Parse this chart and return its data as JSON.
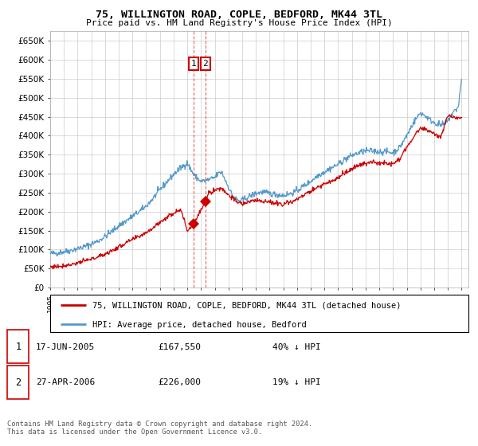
{
  "title": "75, WILLINGTON ROAD, COPLE, BEDFORD, MK44 3TL",
  "subtitle": "Price paid vs. HM Land Registry's House Price Index (HPI)",
  "ylim": [
    0,
    675000
  ],
  "yticks": [
    0,
    50000,
    100000,
    150000,
    200000,
    250000,
    300000,
    350000,
    400000,
    450000,
    500000,
    550000,
    600000,
    650000
  ],
  "xlim_start": 1995.0,
  "xlim_end": 2025.5,
  "sale1_date": 2005.46,
  "sale1_price": 167550,
  "sale2_date": 2006.32,
  "sale2_price": 226000,
  "legend_line1": "75, WILLINGTON ROAD, COPLE, BEDFORD, MK44 3TL (detached house)",
  "legend_line2": "HPI: Average price, detached house, Bedford",
  "footnote": "Contains HM Land Registry data © Crown copyright and database right 2024.\nThis data is licensed under the Open Government Licence v3.0.",
  "red_color": "#cc0000",
  "blue_color": "#5599cc",
  "background_color": "#ffffff",
  "grid_color": "#cccccc",
  "hpi_years": [
    1995,
    1995.5,
    1996,
    1996.5,
    1997,
    1997.5,
    1998,
    1998.5,
    1999,
    1999.5,
    2000,
    2000.5,
    2001,
    2001.5,
    2002,
    2002.5,
    2003,
    2003.5,
    2004,
    2004.5,
    2005,
    2005.5,
    2006,
    2006.5,
    2007,
    2007.25,
    2007.5,
    2007.75,
    2008,
    2008.25,
    2008.5,
    2008.75,
    2009,
    2009.5,
    2010,
    2010.5,
    2011,
    2011.5,
    2012,
    2012.5,
    2013,
    2013.5,
    2014,
    2014.5,
    2015,
    2015.5,
    2016,
    2016.5,
    2017,
    2017.5,
    2018,
    2018.5,
    2019,
    2019.5,
    2020,
    2020.5,
    2021,
    2021.5,
    2022,
    2022.25,
    2022.5,
    2022.75,
    2023,
    2023.25,
    2023.5,
    2023.75,
    2024,
    2024.25,
    2024.5,
    2024.75,
    2025
  ],
  "hpi_values": [
    90000,
    91000,
    95000,
    98000,
    103000,
    108000,
    115000,
    123000,
    135000,
    148000,
    163000,
    175000,
    188000,
    200000,
    215000,
    235000,
    258000,
    278000,
    298000,
    315000,
    328000,
    295000,
    280000,
    283000,
    290000,
    300000,
    305000,
    285000,
    265000,
    245000,
    235000,
    228000,
    230000,
    240000,
    248000,
    252000,
    248000,
    245000,
    243000,
    247000,
    255000,
    268000,
    280000,
    295000,
    305000,
    315000,
    325000,
    338000,
    348000,
    355000,
    360000,
    360000,
    358000,
    358000,
    355000,
    370000,
    400000,
    435000,
    460000,
    455000,
    448000,
    440000,
    435000,
    430000,
    428000,
    430000,
    440000,
    455000,
    465000,
    475000,
    548000
  ],
  "red_years": [
    1995,
    1995.5,
    1996,
    1996.5,
    1997,
    1997.5,
    1998,
    1998.5,
    1999,
    1999.5,
    2000,
    2000.5,
    2001,
    2001.5,
    2002,
    2002.5,
    2003,
    2003.5,
    2004,
    2004.5,
    2005,
    2005.46,
    2006.32,
    2006.5,
    2007,
    2007.5,
    2008,
    2008.5,
    2009,
    2009.5,
    2010,
    2010.5,
    2011,
    2011.5,
    2012,
    2012.5,
    2013,
    2013.5,
    2014,
    2014.5,
    2015,
    2015.5,
    2016,
    2016.5,
    2017,
    2017.5,
    2018,
    2018.5,
    2019,
    2019.5,
    2020,
    2020.5,
    2021,
    2021.5,
    2022,
    2022.5,
    2023,
    2023.5,
    2024,
    2024.5,
    2025
  ],
  "red_values": [
    55000,
    56000,
    58000,
    61000,
    65000,
    70000,
    75000,
    81000,
    89000,
    97000,
    107000,
    117000,
    126000,
    135000,
    146000,
    158000,
    172000,
    185000,
    197000,
    208000,
    150000,
    167550,
    226000,
    248000,
    257000,
    262000,
    245000,
    228000,
    220000,
    226000,
    230000,
    228000,
    224000,
    222000,
    221000,
    225000,
    232000,
    243000,
    254000,
    265000,
    273000,
    280000,
    290000,
    302000,
    312000,
    321000,
    328000,
    330000,
    328000,
    328000,
    326000,
    340000,
    368000,
    398000,
    420000,
    415000,
    405000,
    398000,
    450000,
    448000,
    445000
  ]
}
